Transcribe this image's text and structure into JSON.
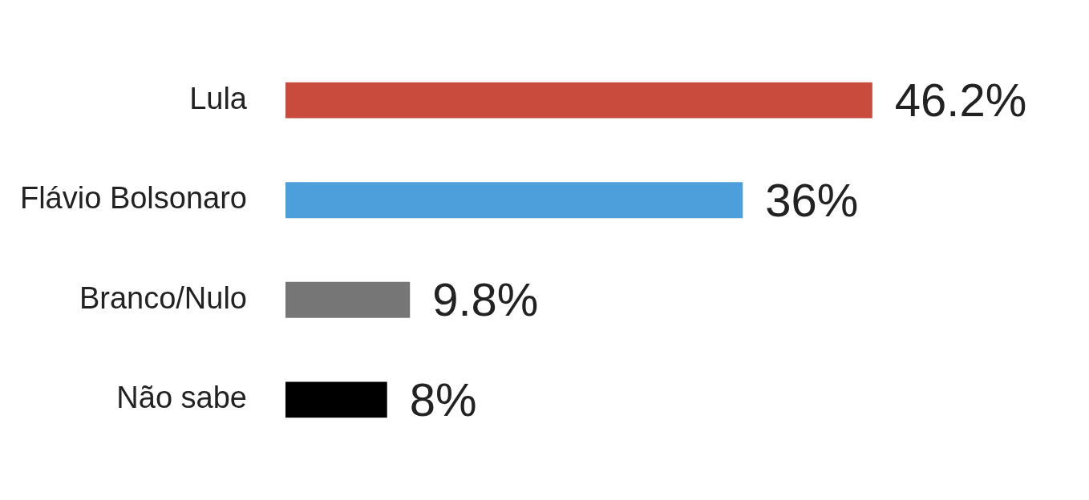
{
  "chart_data": {
    "type": "bar",
    "orientation": "horizontal",
    "categories": [
      "Lula",
      "Flávio Bolsonaro",
      "Branco/Nulo",
      "Não sabe"
    ],
    "values": [
      46.2,
      36,
      9.8,
      8
    ],
    "colors": [
      "#c84b3e",
      "#4d9fdc",
      "#767676",
      "#000000"
    ],
    "value_labels": [
      "46.2%",
      "36%",
      "9.8%",
      "8%"
    ],
    "grid": false,
    "legend": false
  }
}
